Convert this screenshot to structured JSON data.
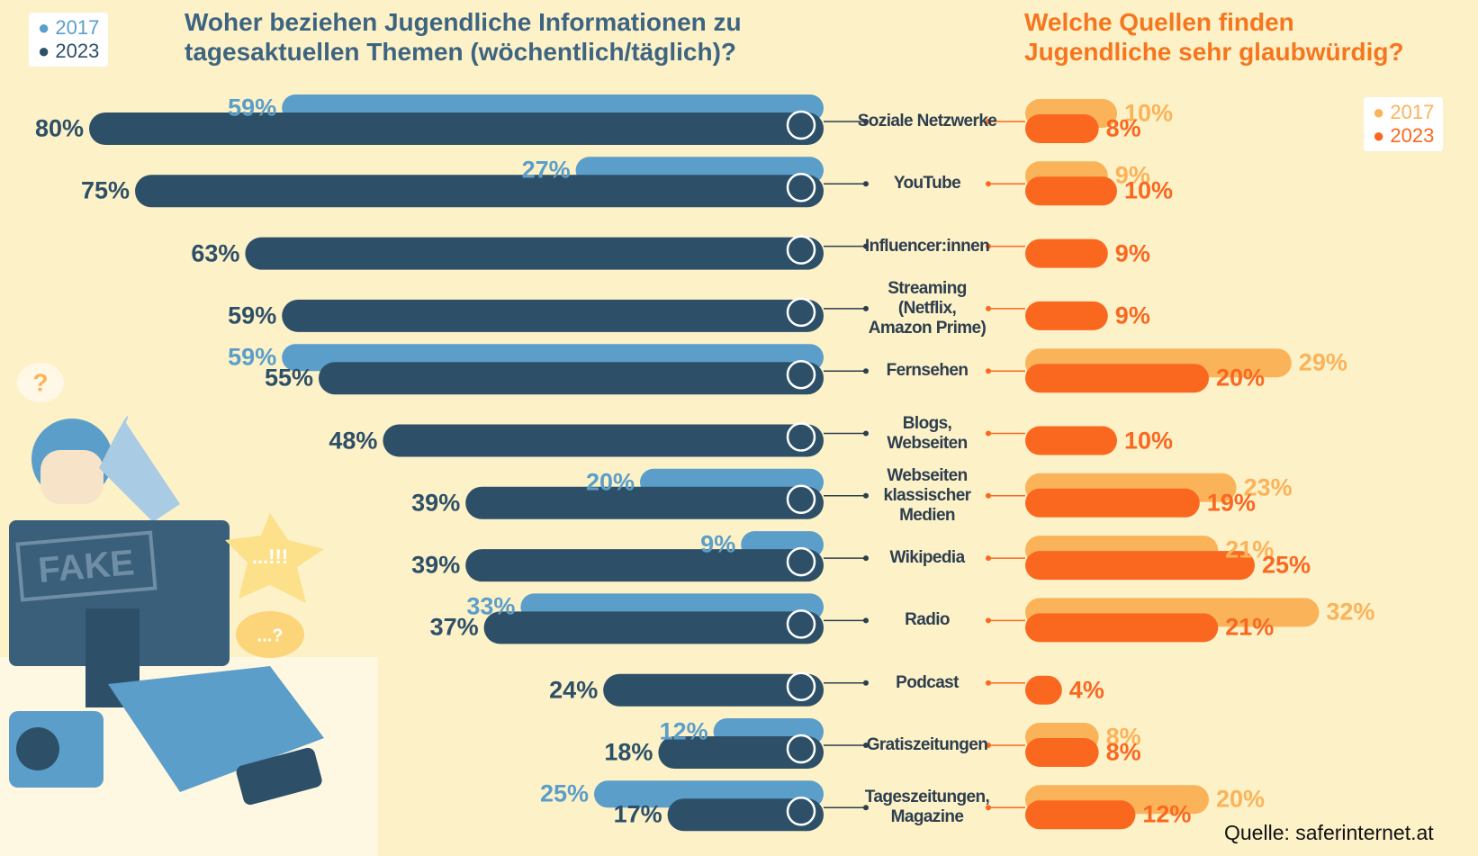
{
  "chart_data": [
    {
      "type": "bar",
      "title": "Woher beziehen Jugendliche Informationen zu\ntagesaktuellen Themen (wöchentlich/täglich)?",
      "legend": "top-left",
      "categories": [
        "Soziale Netzwerke",
        "YouTube",
        "Influencer:innen",
        "Streaming\n(Netflix,\nAmazon Prime)",
        "Fernsehen",
        "Blogs,\nWebseiten",
        "Webseiten\nklassischer\nMedien",
        "Wikipedia",
        "Radio",
        "Podcast",
        "Gratiszeitungen",
        "Tageszeitungen,\nMagazine"
      ],
      "series": [
        {
          "name": "2017",
          "color": "#5b9ec9",
          "values": [
            59,
            27,
            null,
            null,
            59,
            null,
            20,
            9,
            33,
            null,
            12,
            25
          ],
          "value_labels": [
            "59%",
            "27%",
            null,
            null,
            "59%",
            null,
            "20%",
            "9%",
            "33%",
            null,
            "12%",
            "25%"
          ]
        },
        {
          "name": "2023",
          "color": "#2d5068",
          "values": [
            80,
            75,
            63,
            59,
            55,
            48,
            39,
            39,
            37,
            24,
            18,
            17
          ],
          "value_labels": [
            "80%",
            "75%",
            "63%",
            "59%",
            "55%",
            "48%",
            "39%",
            "39%",
            "37%",
            "24%",
            "18%",
            "17%"
          ]
        }
      ]
    },
    {
      "type": "bar",
      "title": "Welche Quellen finden\nJugendliche sehr glaubwürdig?",
      "legend": "top-right",
      "series": [
        {
          "name": "2017",
          "color": "#fbb35a",
          "values": [
            10,
            9,
            null,
            null,
            29,
            null,
            23,
            21,
            32,
            null,
            8,
            20
          ],
          "value_labels": [
            "10%",
            "9%",
            null,
            null,
            "29%",
            null,
            "23%",
            "21%",
            "32%",
            null,
            "8%",
            "20%"
          ]
        },
        {
          "name": "2023",
          "color": "#fa6820",
          "values": [
            8,
            10,
            9,
            9,
            20,
            10,
            19,
            25,
            21,
            4,
            8,
            12
          ],
          "value_labels": [
            "8%",
            "10%",
            "9%",
            "9%",
            "20%",
            "10%",
            "19%",
            "25%",
            "21%",
            "4%",
            "8%",
            "12%"
          ]
        }
      ]
    }
  ],
  "illustration": {
    "sign": "FAKE",
    "bubble_question": "?",
    "burst": "...!!!",
    "bubble_small": "...?"
  },
  "source": "Quelle: saferinternet.at"
}
